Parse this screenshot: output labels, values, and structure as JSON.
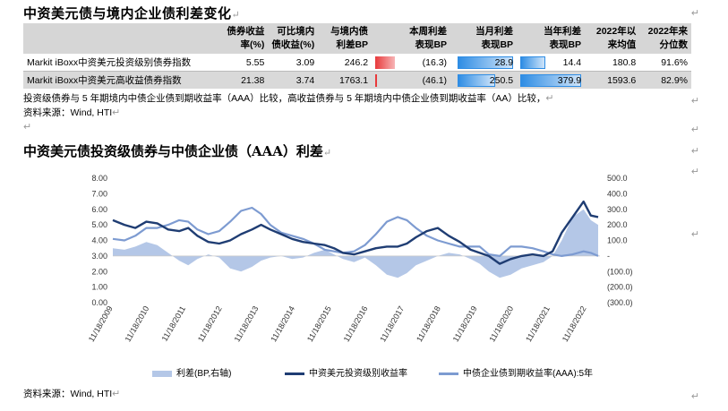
{
  "section1": {
    "title": "中资美元债与境内企业债利差变化",
    "table": {
      "headers": [
        "",
        "债券收益\n率(%)",
        "可比境内\n债收益(%)",
        "与境内债\n利差BP",
        "本周利差\n表现BP",
        "当月利差\n表现BP",
        "当年利差\n表现BP",
        "2022年以\n来均值",
        "2022年来\n分位数"
      ],
      "rows": [
        {
          "name": "Markit iBoxx中资美元投资级别债券指数",
          "yield": "5.55",
          "domestic": "3.09",
          "spread": "246.2",
          "week": "(16.3)",
          "month": "28.9",
          "year": "14.4",
          "avg": "180.8",
          "pct": "91.6%"
        },
        {
          "name": "Markit iBoxx中资美元高收益债券指数",
          "yield": "21.38",
          "domestic": "3.74",
          "spread": "1763.1",
          "week": "(46.1)",
          "month": "250.5",
          "year": "379.9",
          "avg": "1593.6",
          "pct": "82.9%"
        }
      ]
    },
    "note": "投资级债券与 5 年期境内中债企业债到期收益率（AAA）比较，高收益债券与 5 年期境内中债企业债到期收益率（AA）比较，",
    "source": "资料来源：Wind, HTI"
  },
  "section2": {
    "title": "中资美元债投资级债券与中债企业债（AAA）利差",
    "source": "资料来源：Wind, HTI"
  },
  "colors": {
    "spread_area": "#b4c7e7",
    "ig_line": "#1f3d73",
    "cn_line": "#7d9bd1",
    "neg_bar": "#e8393b",
    "pos_bar": "#2f8de4"
  },
  "chart_data": {
    "type": "line",
    "x_tick_labels": [
      "11/18/2009",
      "11/18/2010",
      "11/18/2011",
      "11/18/2012",
      "11/18/2013",
      "11/18/2014",
      "11/18/2015",
      "11/18/2016",
      "11/18/2017",
      "11/18/2018",
      "11/18/2019",
      "11/18/2020",
      "11/18/2021",
      "11/18/2022"
    ],
    "y_left": {
      "ticks": [
        "8.00",
        "7.00",
        "6.00",
        "5.00",
        "4.00",
        "3.00",
        "2.00",
        "1.00",
        "0.00"
      ],
      "range": [
        0,
        8
      ]
    },
    "y_right": {
      "ticks": [
        "500.0",
        "400.0",
        "300.0",
        "200.0",
        "100.0",
        "-",
        "(100.0)",
        "(200.0)",
        "(300.0)"
      ],
      "range": [
        -300,
        500
      ]
    },
    "x": [
      2009.88,
      2010.2,
      2010.5,
      2010.8,
      2011.1,
      2011.4,
      2011.7,
      2011.95,
      2012.2,
      2012.5,
      2012.8,
      2013.1,
      2013.4,
      2013.7,
      2013.95,
      2014.2,
      2014.5,
      2014.8,
      2015.1,
      2015.4,
      2015.7,
      2015.95,
      2016.2,
      2016.5,
      2016.8,
      2017.1,
      2017.4,
      2017.7,
      2017.95,
      2018.2,
      2018.5,
      2018.8,
      2019.1,
      2019.4,
      2019.7,
      2019.95,
      2020.2,
      2020.5,
      2020.8,
      2021.1,
      2021.4,
      2021.7,
      2021.95,
      2022.2,
      2022.5,
      2022.8,
      2023.0,
      2023.2
    ],
    "series": [
      {
        "name": "利差(BP,右轴)",
        "axis": "right",
        "values": [
          50,
          40,
          60,
          90,
          70,
          20,
          -30,
          -60,
          -20,
          10,
          -10,
          -80,
          -100,
          -70,
          -30,
          -10,
          0,
          -20,
          -10,
          20,
          40,
          10,
          -20,
          -40,
          -10,
          -60,
          -120,
          -140,
          -110,
          -60,
          -30,
          0,
          20,
          10,
          -20,
          -50,
          -100,
          -140,
          -120,
          -80,
          -60,
          -40,
          0,
          100,
          250,
          300,
          230,
          200
        ]
      },
      {
        "name": "中资美元投资级别收益率",
        "axis": "left",
        "values": [
          5.3,
          5.0,
          4.8,
          5.2,
          5.1,
          4.7,
          4.6,
          4.8,
          4.3,
          3.9,
          3.8,
          4.0,
          4.4,
          4.7,
          5.0,
          4.7,
          4.4,
          4.1,
          3.9,
          3.8,
          3.7,
          3.5,
          3.2,
          3.1,
          3.3,
          3.5,
          3.6,
          3.6,
          3.8,
          4.2,
          4.6,
          4.8,
          4.3,
          3.9,
          3.4,
          3.2,
          3.0,
          2.5,
          2.8,
          3.0,
          3.1,
          3.0,
          3.3,
          4.5,
          5.5,
          6.5,
          5.6,
          5.5
        ]
      },
      {
        "name": "中债企业债到期收益率(AAA):5年",
        "axis": "left",
        "values": [
          4.1,
          4.0,
          4.3,
          4.8,
          4.8,
          5.0,
          5.3,
          5.2,
          4.7,
          4.4,
          4.6,
          5.2,
          5.9,
          6.1,
          5.7,
          5.0,
          4.5,
          4.3,
          4.1,
          3.8,
          3.4,
          3.3,
          3.2,
          3.3,
          3.7,
          4.4,
          5.2,
          5.5,
          5.3,
          4.8,
          4.3,
          4.0,
          3.8,
          3.6,
          3.6,
          3.6,
          3.1,
          3.0,
          3.6,
          3.6,
          3.5,
          3.3,
          3.1,
          3.0,
          3.1,
          3.3,
          3.2,
          3.0
        ]
      }
    ],
    "legend_position": "bottom"
  }
}
